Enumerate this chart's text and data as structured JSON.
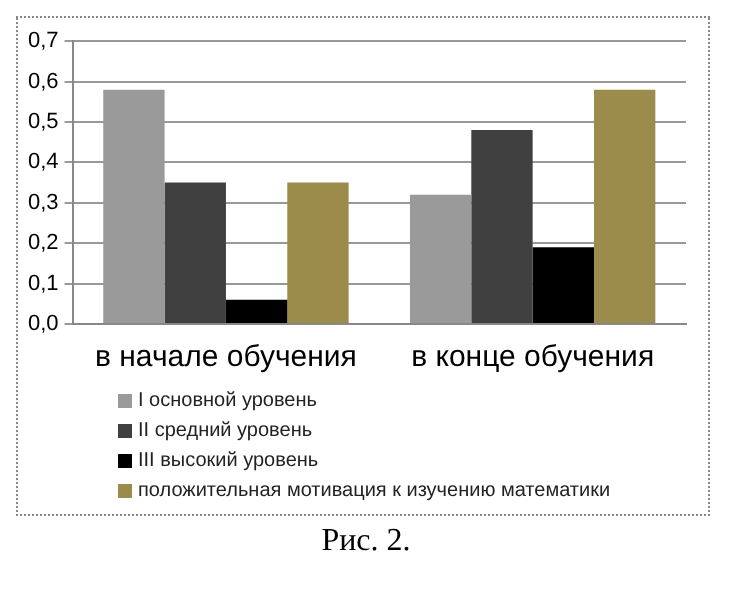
{
  "chart_data": {
    "type": "bar",
    "categories": [
      "в начале обучения",
      "в конце обучения"
    ],
    "series": [
      {
        "name": "I основной уровень",
        "color": "#9a9a9a",
        "values": [
          0.58,
          0.32
        ]
      },
      {
        "name": "II средний  уровень",
        "color": "#404040",
        "values": [
          0.35,
          0.48
        ]
      },
      {
        "name": "III высокий  уровень",
        "color": "#000000",
        "values": [
          0.06,
          0.19
        ]
      },
      {
        "name": "положительная мотивация к изучению математики",
        "color": "#9c8c4c",
        "values": [
          0.35,
          0.58
        ]
      }
    ],
    "ylim": [
      0,
      0.7
    ],
    "yticks": [
      {
        "value": 0,
        "label": "0,0"
      },
      {
        "value": 0.1,
        "label": "0,1"
      },
      {
        "value": 0.2,
        "label": "0,2"
      },
      {
        "value": 0.3,
        "label": "0,3"
      },
      {
        "value": 0.4,
        "label": "0,4"
      },
      {
        "value": 0.5,
        "label": "0,5"
      },
      {
        "value": 0.6,
        "label": "0,6"
      },
      {
        "value": 0.7,
        "label": "0,7"
      }
    ],
    "grid": "y",
    "legend": "bottom",
    "annotations": [
      "Рис. 2."
    ]
  }
}
